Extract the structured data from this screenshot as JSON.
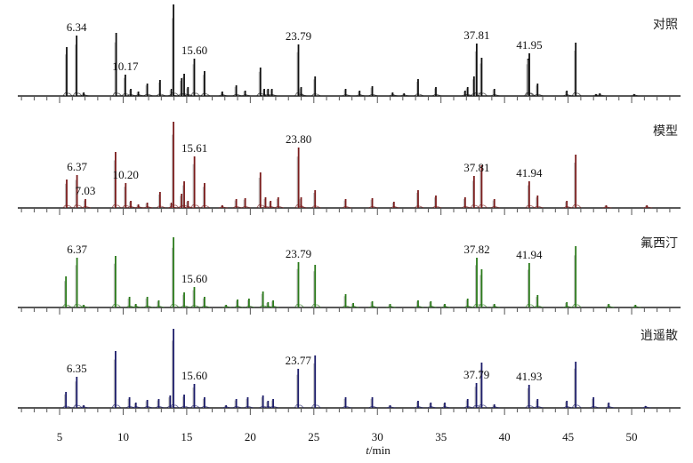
{
  "chart_data": {
    "type": "line",
    "subtype": "stacked chromatograms",
    "xlabel_italic": "t",
    "xlabel_rest": "/min",
    "xlim": [
      1.7,
      54
    ],
    "xticks": [
      5,
      10,
      15,
      20,
      25,
      30,
      35,
      40,
      45,
      50
    ],
    "grid": false,
    "panels": [
      {
        "name": "对照",
        "color": "#111111",
        "peaks": [
          [
            5.56,
            55
          ],
          [
            6.34,
            68
          ],
          [
            6.9,
            4
          ],
          [
            9.45,
            71
          ],
          [
            10.17,
            24
          ],
          [
            10.6,
            8
          ],
          [
            11.2,
            5
          ],
          [
            11.9,
            14
          ],
          [
            12.9,
            18
          ],
          [
            13.8,
            8
          ],
          [
            13.96,
            103
          ],
          [
            14.6,
            20
          ],
          [
            14.8,
            25
          ],
          [
            15.1,
            10
          ],
          [
            15.6,
            42
          ],
          [
            16.4,
            28
          ],
          [
            17.8,
            5
          ],
          [
            18.9,
            12
          ],
          [
            19.6,
            6
          ],
          [
            20.8,
            32
          ],
          [
            21.1,
            8
          ],
          [
            21.4,
            8
          ],
          [
            21.7,
            8
          ],
          [
            23.79,
            58
          ],
          [
            24.0,
            10
          ],
          [
            25.1,
            22
          ],
          [
            27.5,
            8
          ],
          [
            28.6,
            6
          ],
          [
            29.6,
            11
          ],
          [
            31.2,
            4
          ],
          [
            32.1,
            3
          ],
          [
            33.2,
            19
          ],
          [
            34.6,
            10
          ],
          [
            36.9,
            6
          ],
          [
            37.1,
            10
          ],
          [
            37.6,
            22
          ],
          [
            37.81,
            59
          ],
          [
            38.2,
            43
          ],
          [
            39.2,
            8
          ],
          [
            41.85,
            42
          ],
          [
            41.95,
            48
          ],
          [
            42.6,
            14
          ],
          [
            44.9,
            6
          ],
          [
            45.6,
            60
          ],
          [
            47.2,
            2
          ],
          [
            47.5,
            3
          ],
          [
            50.2,
            2
          ]
        ],
        "labels": [
          [
            6.34,
            "6.34"
          ],
          [
            10.17,
            "10.17"
          ],
          [
            15.6,
            "15.60"
          ],
          [
            23.79,
            "23.79"
          ],
          [
            37.81,
            "37.81"
          ],
          [
            41.95,
            "41.95"
          ]
        ]
      },
      {
        "name": "模型",
        "color": "#7a1c1c",
        "peaks": [
          [
            5.56,
            32
          ],
          [
            6.37,
            37
          ],
          [
            7.03,
            10
          ],
          [
            9.4,
            63
          ],
          [
            10.2,
            28
          ],
          [
            10.6,
            8
          ],
          [
            11.2,
            4
          ],
          [
            11.9,
            6
          ],
          [
            12.9,
            18
          ],
          [
            13.8,
            6
          ],
          [
            13.96,
            97
          ],
          [
            14.6,
            16
          ],
          [
            14.8,
            30
          ],
          [
            15.1,
            8
          ],
          [
            15.61,
            58
          ],
          [
            16.4,
            28
          ],
          [
            17.8,
            3
          ],
          [
            18.9,
            10
          ],
          [
            19.6,
            11
          ],
          [
            20.8,
            40
          ],
          [
            21.2,
            12
          ],
          [
            21.6,
            8
          ],
          [
            22.2,
            12
          ],
          [
            23.8,
            68
          ],
          [
            24.0,
            12
          ],
          [
            25.1,
            20
          ],
          [
            27.5,
            10
          ],
          [
            29.6,
            11
          ],
          [
            31.3,
            7
          ],
          [
            33.2,
            20
          ],
          [
            34.6,
            14
          ],
          [
            36.9,
            12
          ],
          [
            37.6,
            36
          ],
          [
            38.2,
            48
          ],
          [
            39.2,
            10
          ],
          [
            41.94,
            30
          ],
          [
            42.6,
            14
          ],
          [
            44.9,
            8
          ],
          [
            45.6,
            60
          ],
          [
            48.0,
            3
          ],
          [
            51.2,
            3
          ]
        ],
        "labels": [
          [
            6.37,
            "6.37"
          ],
          [
            7.03,
            "7.03"
          ],
          [
            10.2,
            "10.20"
          ],
          [
            15.61,
            "15.61"
          ],
          [
            23.8,
            "23.80"
          ],
          [
            37.81,
            "37.81"
          ],
          [
            41.94,
            "41.94"
          ]
        ]
      },
      {
        "name": "氟西汀",
        "color": "#2a7a1a",
        "peaks": [
          [
            5.5,
            35
          ],
          [
            6.37,
            56
          ],
          [
            6.9,
            3
          ],
          [
            9.4,
            58
          ],
          [
            10.5,
            12
          ],
          [
            11.0,
            4
          ],
          [
            11.9,
            12
          ],
          [
            12.8,
            8
          ],
          [
            13.96,
            79
          ],
          [
            14.8,
            17
          ],
          [
            15.6,
            23
          ],
          [
            16.4,
            12
          ],
          [
            18.1,
            3
          ],
          [
            19.0,
            9
          ],
          [
            19.9,
            10
          ],
          [
            21.0,
            18
          ],
          [
            21.4,
            6
          ],
          [
            21.8,
            8
          ],
          [
            23.79,
            51
          ],
          [
            25.1,
            48
          ],
          [
            27.5,
            15
          ],
          [
            28.1,
            5
          ],
          [
            29.6,
            7
          ],
          [
            31.0,
            4
          ],
          [
            33.2,
            8
          ],
          [
            34.2,
            7
          ],
          [
            35.3,
            4
          ],
          [
            37.1,
            10
          ],
          [
            37.82,
            56
          ],
          [
            38.2,
            43
          ],
          [
            39.2,
            4
          ],
          [
            41.94,
            50
          ],
          [
            42.6,
            14
          ],
          [
            44.9,
            6
          ],
          [
            45.6,
            69
          ],
          [
            48.2,
            4
          ],
          [
            50.3,
            3
          ]
        ],
        "labels": [
          [
            6.37,
            "6.37"
          ],
          [
            15.6,
            "15.60"
          ],
          [
            23.79,
            "23.79"
          ],
          [
            37.82,
            "37.82"
          ],
          [
            41.94,
            "41.94"
          ]
        ]
      },
      {
        "name": "逍遥散",
        "color": "#1c1c6a",
        "peaks": [
          [
            5.5,
            18
          ],
          [
            6.35,
            35
          ],
          [
            6.9,
            3
          ],
          [
            9.4,
            64
          ],
          [
            10.5,
            12
          ],
          [
            11.0,
            6
          ],
          [
            11.9,
            9
          ],
          [
            12.8,
            10
          ],
          [
            13.7,
            14
          ],
          [
            13.96,
            89
          ],
          [
            14.8,
            15
          ],
          [
            15.6,
            27
          ],
          [
            16.4,
            12
          ],
          [
            18.1,
            3
          ],
          [
            18.9,
            10
          ],
          [
            19.8,
            12
          ],
          [
            21.0,
            14
          ],
          [
            21.4,
            8
          ],
          [
            21.8,
            10
          ],
          [
            23.77,
            44
          ],
          [
            25.1,
            59
          ],
          [
            27.5,
            12
          ],
          [
            29.6,
            12
          ],
          [
            31.0,
            3
          ],
          [
            33.2,
            8
          ],
          [
            34.2,
            6
          ],
          [
            35.3,
            6
          ],
          [
            37.1,
            10
          ],
          [
            37.79,
            28
          ],
          [
            38.2,
            51
          ],
          [
            39.2,
            4
          ],
          [
            41.93,
            26
          ],
          [
            42.6,
            10
          ],
          [
            44.9,
            8
          ],
          [
            45.6,
            52
          ],
          [
            47.0,
            12
          ],
          [
            48.2,
            6
          ],
          [
            51.1,
            2
          ]
        ],
        "labels": [
          [
            6.35,
            "6.35"
          ],
          [
            15.6,
            "15.60"
          ],
          [
            23.77,
            "23.77"
          ],
          [
            37.79,
            "37.79"
          ],
          [
            41.93,
            "41.93"
          ]
        ]
      }
    ]
  }
}
